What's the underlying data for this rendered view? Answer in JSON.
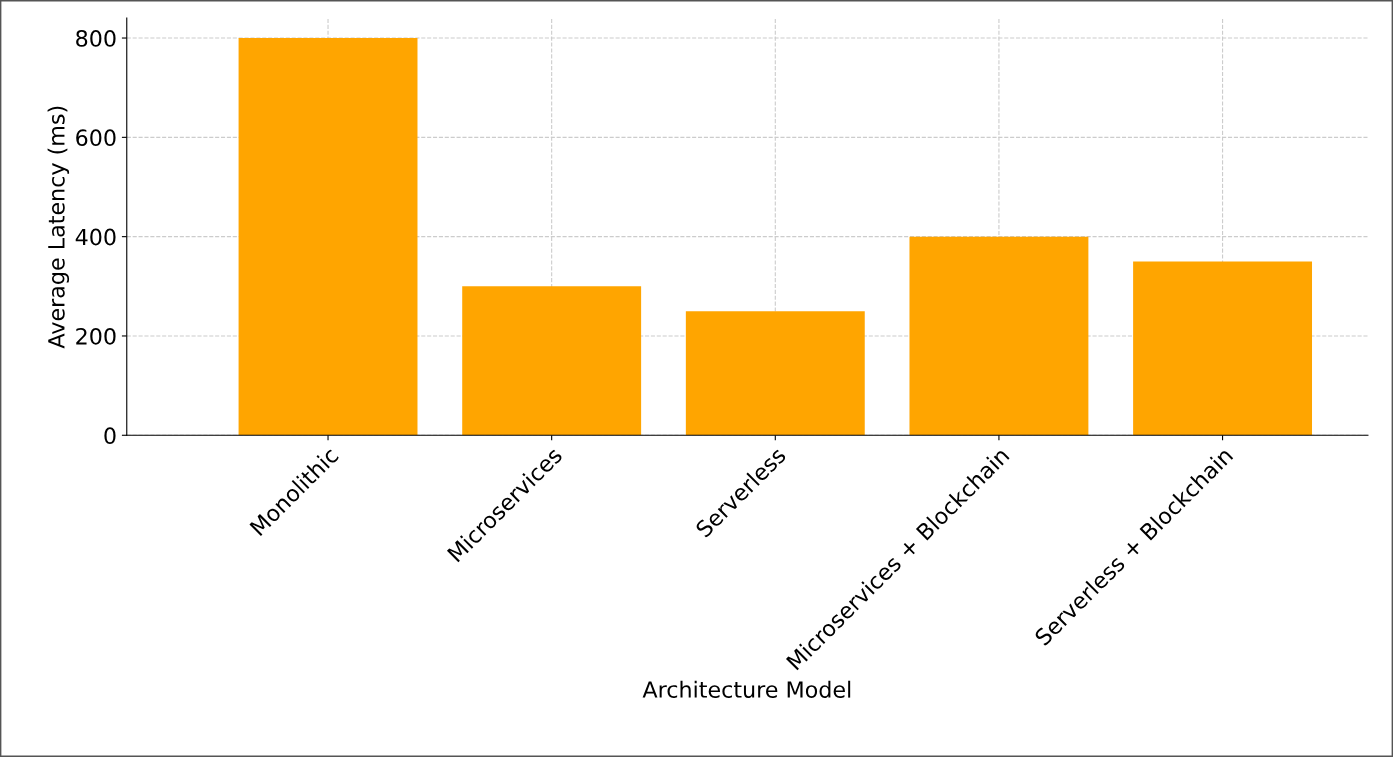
{
  "chart_data": {
    "type": "bar",
    "xlabel": "Architecture Model",
    "ylabel": "Average Latency (ms)",
    "categories": [
      "Monolithic",
      "Microservices",
      "Serverless",
      "Microservices + Blockchain",
      "Serverless + Blockchain"
    ],
    "values": [
      800,
      300,
      250,
      400,
      350
    ],
    "color": "#ffa500",
    "ylim": [
      0,
      840
    ],
    "yticks": [
      0,
      200,
      400,
      600,
      800
    ],
    "grid": true,
    "line_style": "dashed"
  }
}
